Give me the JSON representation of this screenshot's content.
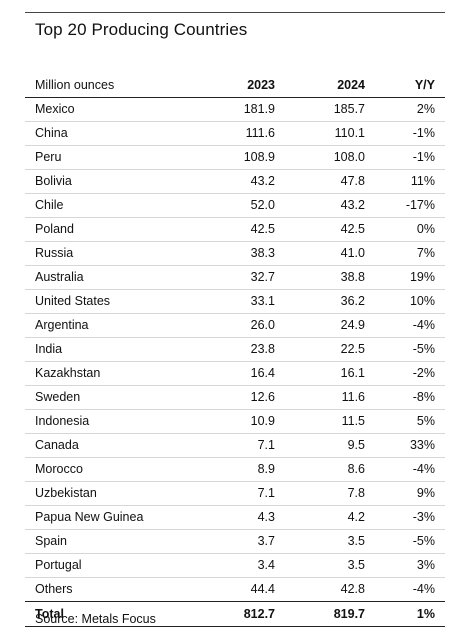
{
  "title": "Top 20 Producing Countries",
  "source": "Source: Metals Focus",
  "chart_data": {
    "type": "table",
    "title": "Top 20 Producing Countries",
    "columns": [
      "Million ounces",
      "2023",
      "2024",
      "Y/Y"
    ],
    "rows": [
      {
        "country": "Mexico",
        "v2023": "181.9",
        "v2024": "185.7",
        "yy": "2%"
      },
      {
        "country": "China",
        "v2023": "111.6",
        "v2024": "110.1",
        "yy": "-1%"
      },
      {
        "country": "Peru",
        "v2023": "108.9",
        "v2024": "108.0",
        "yy": "-1%"
      },
      {
        "country": "Bolivia",
        "v2023": "43.2",
        "v2024": "47.8",
        "yy": "11%"
      },
      {
        "country": "Chile",
        "v2023": "52.0",
        "v2024": "43.2",
        "yy": "-17%"
      },
      {
        "country": "Poland",
        "v2023": "42.5",
        "v2024": "42.5",
        "yy": "0%"
      },
      {
        "country": "Russia",
        "v2023": "38.3",
        "v2024": "41.0",
        "yy": "7%"
      },
      {
        "country": "Australia",
        "v2023": "32.7",
        "v2024": "38.8",
        "yy": "19%"
      },
      {
        "country": "United States",
        "v2023": "33.1",
        "v2024": "36.2",
        "yy": "10%"
      },
      {
        "country": "Argentina",
        "v2023": "26.0",
        "v2024": "24.9",
        "yy": "-4%"
      },
      {
        "country": "India",
        "v2023": "23.8",
        "v2024": "22.5",
        "yy": "-5%"
      },
      {
        "country": "Kazakhstan",
        "v2023": "16.4",
        "v2024": "16.1",
        "yy": "-2%"
      },
      {
        "country": "Sweden",
        "v2023": "12.6",
        "v2024": "11.6",
        "yy": "-8%"
      },
      {
        "country": "Indonesia",
        "v2023": "10.9",
        "v2024": "11.5",
        "yy": "5%"
      },
      {
        "country": "Canada",
        "v2023": "7.1",
        "v2024": "9.5",
        "yy": "33%"
      },
      {
        "country": "Morocco",
        "v2023": "8.9",
        "v2024": "8.6",
        "yy": "-4%"
      },
      {
        "country": "Uzbekistan",
        "v2023": "7.1",
        "v2024": "7.8",
        "yy": "9%"
      },
      {
        "country": "Papua New Guinea",
        "v2023": "4.3",
        "v2024": "4.2",
        "yy": "-3%"
      },
      {
        "country": "Spain",
        "v2023": "3.7",
        "v2024": "3.5",
        "yy": "-5%"
      },
      {
        "country": "Portugal",
        "v2023": "3.4",
        "v2024": "3.5",
        "yy": "3%"
      },
      {
        "country": "Others",
        "v2023": "44.4",
        "v2024": "42.8",
        "yy": "-4%"
      }
    ],
    "total": {
      "label": "Total",
      "v2023": "812.7",
      "v2024": "819.7",
      "yy": "1%"
    }
  }
}
